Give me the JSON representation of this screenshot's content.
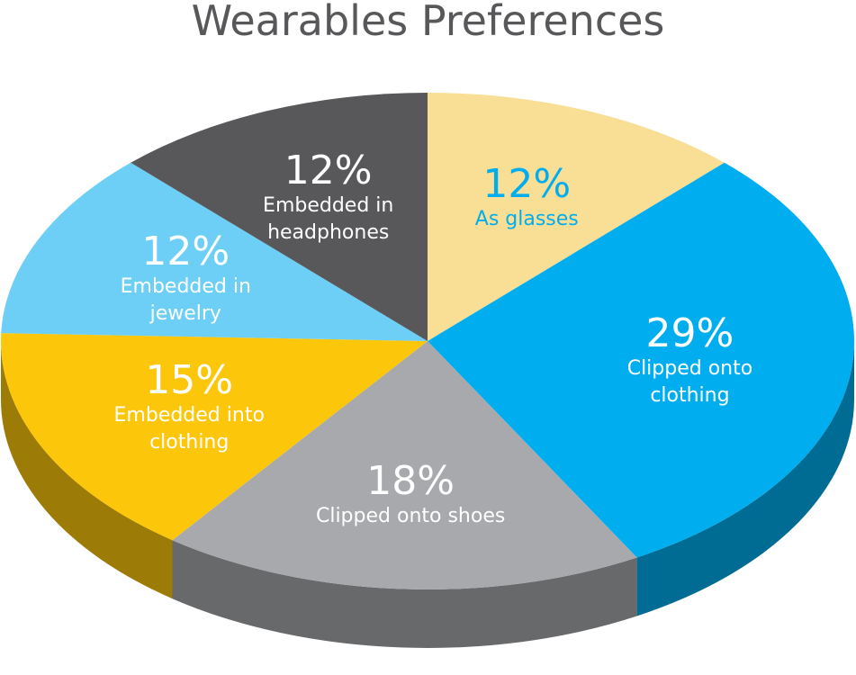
{
  "chart_data": {
    "type": "pie",
    "title": "Wearables Preferences",
    "categories": [
      "As glasses",
      "Clipped onto clothing",
      "Clipped onto shoes",
      "Embedded into clothing",
      "Embedded in jewelry",
      "Embedded in headphones"
    ],
    "values": [
      12,
      29,
      18,
      15,
      12,
      12
    ],
    "value_labels": [
      "12%",
      "29%",
      "18%",
      "15%",
      "12%",
      "12%"
    ],
    "colors": [
      "#f9df96",
      "#00aeef",
      "#a7a9ac",
      "#fcc60b",
      "#6dcff6",
      "#58585b"
    ]
  }
}
